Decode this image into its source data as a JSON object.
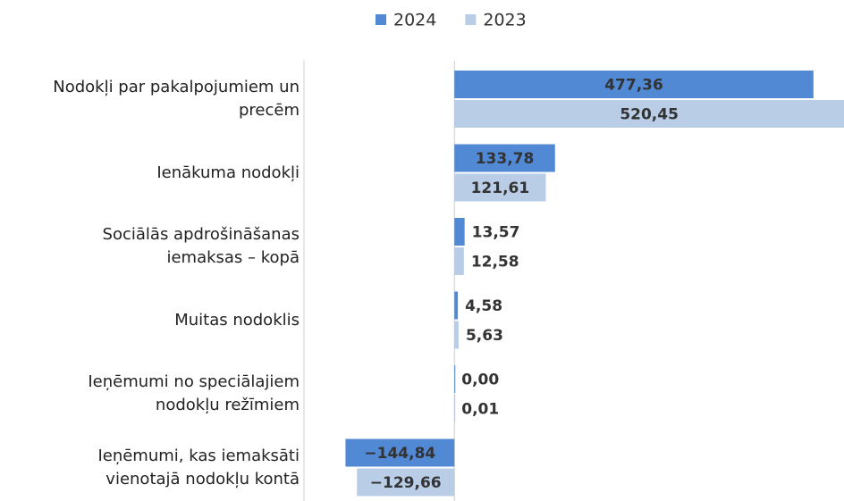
{
  "chart_data": {
    "type": "bar",
    "orientation": "horizontal",
    "categories": [
      "Nodokļi par pakalpojumiem un precēm",
      "Ienākuma nodokļi",
      "Sociālās apdrošināšanas iemaksas – kopā",
      "Muitas nodoklis",
      "Ieņēmumi no speciālajiem nodokļu režīmiem",
      "Ieņēmumi, kas iemaksāti vienotajā nodokļu kontā"
    ],
    "series": [
      {
        "name": "2024",
        "color": "#5289d5",
        "values": [
          477.36,
          133.78,
          13.57,
          4.58,
          0.0,
          -144.84
        ],
        "value_labels": [
          "477,36",
          "133,78",
          "13,57",
          "4,58",
          "0,00",
          "−144,84"
        ]
      },
      {
        "name": "2023",
        "color": "#b9cde7",
        "values": [
          520.45,
          121.61,
          12.58,
          5.63,
          0.01,
          -129.66
        ],
        "value_labels": [
          "520,45",
          "121,61",
          "12,58",
          "5,63",
          "0,01",
          "−129,66"
        ]
      }
    ],
    "xlim": [
      -200,
      518
    ],
    "legend": "top"
  }
}
